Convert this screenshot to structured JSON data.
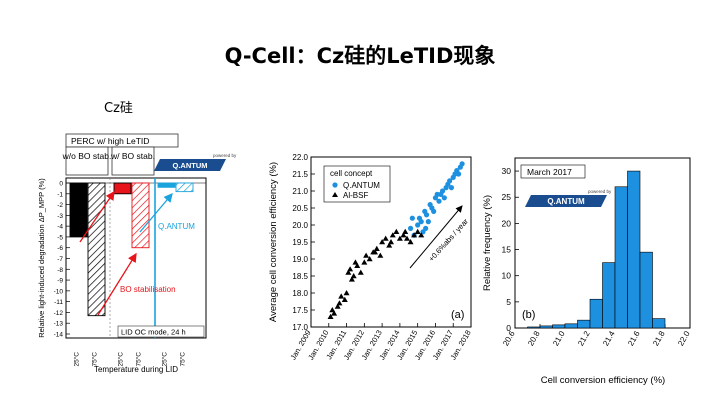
{
  "slide": {
    "title": "Q-Cell：Cz硅的LeTID现象",
    "subtitle": "Cz硅"
  },
  "chart_data": [
    {
      "type": "bar",
      "title": "PERC w/ high LeTID",
      "ylabel": "Relative light-induced degradation ΔP_MPP (%)",
      "xlabel": "Temperature during LID",
      "ylim": [
        -14,
        0
      ],
      "yticks": [
        "0",
        "-1",
        "-2",
        "-3",
        "-4",
        "-5",
        "-6",
        "-7",
        "-8",
        "-9",
        "-10",
        "-11",
        "-12",
        "-13",
        "-14"
      ],
      "groups": [
        {
          "label": "w/o BO stab.",
          "categories": [
            "25°C",
            "75°C"
          ],
          "values": [
            -5.0,
            -12.3
          ],
          "styles": [
            "solid-black",
            "hatched-black"
          ]
        },
        {
          "label": "w/ BO stab.",
          "categories": [
            "25°C",
            "75°C"
          ],
          "values": [
            -1.0,
            -6.0
          ],
          "styles": [
            "solid-red",
            "hatched-red"
          ]
        },
        {
          "label": "",
          "categories": [
            "25°C",
            "75°C"
          ],
          "values": [
            -0.4,
            -0.8
          ],
          "styles": [
            "solid-blue",
            "hatched-blue"
          ]
        }
      ],
      "annotations": {
        "bo": "BO stabilisation",
        "qantum": "Q.ANTUM",
        "mode": "LID OC mode, 24 h"
      },
      "logo": {
        "powered": "powered by",
        "name": "Q.ANTUM"
      },
      "colors": {
        "black": "#000000",
        "red": "#e8141b",
        "blue": "#1ba3dd"
      }
    },
    {
      "type": "scatter",
      "panel": "(a)",
      "ylabel": "Average cell conversion efficiency (%)",
      "ylim": [
        17.0,
        22.0
      ],
      "yticks": [
        "17.0",
        "17.5",
        "18.0",
        "18.5",
        "19.0",
        "19.5",
        "20.0",
        "20.5",
        "21.0",
        "21.5",
        "22.0"
      ],
      "xticks": [
        "Jan. 2009",
        "Jan. 2010",
        "Jan. 2011",
        "Jan. 2012",
        "Jan. 2013",
        "Jan. 2014",
        "Jan. 2015",
        "Jan. 2016",
        "Jan. 2017",
        "Jan. 2018"
      ],
      "xlim": [
        2009,
        2018
      ],
      "legend_title": "cell concept",
      "series": [
        {
          "name": "Q.ANTUM",
          "color": "#1e90e0",
          "marker": "circle",
          "x": [
            2014.6,
            2014.8,
            2015.0,
            2015.1,
            2015.2,
            2015.3,
            2015.4,
            2015.5,
            2015.6,
            2015.7,
            2015.8,
            2015.9,
            2016.0,
            2016.1,
            2016.2,
            2016.3,
            2016.4,
            2016.5,
            2016.6,
            2016.7,
            2016.8,
            2016.9,
            2017.0,
            2017.1,
            2017.2,
            2017.3,
            2017.4,
            2017.5,
            2014.7,
            2015.45
          ],
          "y": [
            19.9,
            19.7,
            20.0,
            20.2,
            20.1,
            19.8,
            20.4,
            20.3,
            20.1,
            20.6,
            20.5,
            20.4,
            20.8,
            20.9,
            20.7,
            20.9,
            21.0,
            20.8,
            21.1,
            21.2,
            21.3,
            21.1,
            21.4,
            21.5,
            21.6,
            21.5,
            21.7,
            21.8,
            20.2,
            19.9
          ]
        },
        {
          "name": "Al-BSF",
          "color": "#000000",
          "marker": "triangle",
          "x": [
            2010.1,
            2010.2,
            2010.3,
            2010.5,
            2010.7,
            2010.9,
            2011.0,
            2011.1,
            2011.2,
            2011.4,
            2011.6,
            2011.8,
            2012.0,
            2012.1,
            2012.3,
            2012.5,
            2012.7,
            2012.9,
            2013.0,
            2013.2,
            2013.4,
            2013.6,
            2013.8,
            2014.0,
            2014.2,
            2014.4,
            2014.6,
            2014.8,
            2015.0,
            2015.2,
            2011.5,
            2012.6,
            2013.5,
            2014.3,
            2010.6,
            2011.3
          ],
          "y": [
            17.3,
            17.5,
            17.4,
            17.6,
            17.9,
            17.8,
            18.0,
            18.6,
            18.7,
            18.5,
            18.8,
            18.6,
            18.9,
            19.1,
            19.0,
            19.2,
            19.3,
            19.1,
            19.5,
            19.6,
            19.4,
            19.7,
            19.8,
            19.6,
            19.7,
            19.6,
            19.5,
            19.7,
            19.8,
            19.7,
            18.9,
            19.2,
            19.5,
            19.8,
            17.7,
            18.4
          ]
        }
      ],
      "annotation": "+0.6%abs / year"
    },
    {
      "type": "bar",
      "panel": "(b)",
      "title": "March 2017",
      "xlabel": "Cell conversion efficiency (%)",
      "ylabel": "Relative frequency (%)",
      "ylim": [
        0,
        30
      ],
      "yticks": [
        "0",
        "5",
        "10",
        "15",
        "20",
        "25",
        "30"
      ],
      "xticks": [
        "20.6",
        "20.8",
        "21.0",
        "21.2",
        "21.4",
        "21.6",
        "21.8",
        "22.0"
      ],
      "xlim": [
        20.6,
        22.0
      ],
      "bin_width": 0.1,
      "bin_starts": [
        20.7,
        20.8,
        20.9,
        21.0,
        21.1,
        21.2,
        21.3,
        21.4,
        21.5,
        21.6,
        21.7
      ],
      "values": [
        0.2,
        0.4,
        0.6,
        0.8,
        1.5,
        5.5,
        12.5,
        27.0,
        30.0,
        14.5,
        1.8
      ],
      "color": "#1e90e0",
      "logo": {
        "powered": "powered by",
        "name": "Q.ANTUM"
      }
    }
  ]
}
